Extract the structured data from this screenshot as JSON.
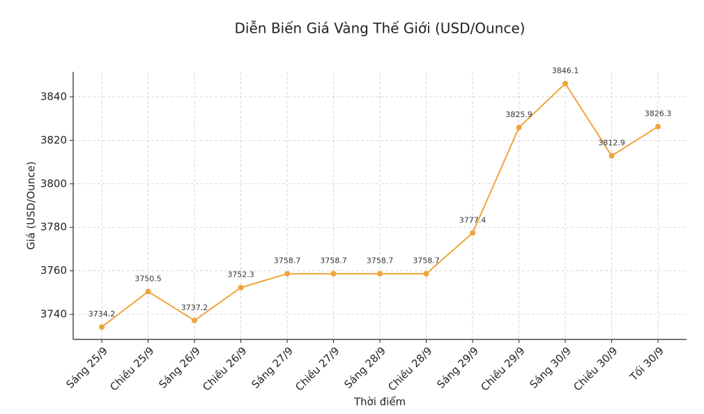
{
  "chart_data": {
    "type": "line",
    "title": "Diễn Biến Giá Vàng Thế Giới (USD/Ounce)",
    "x_label": "Thời điểm",
    "y_label": "Giá (USD/Ounce)",
    "categories": [
      "Sáng 25/9",
      "Chiều 25/9",
      "Sáng 26/9",
      "Chiều 26/9",
      "Sáng 27/9",
      "Chiều 27/9",
      "Sáng 28/9",
      "Chiều 28/9",
      "Sáng 29/9",
      "Chiều 29/9",
      "Sáng 30/9",
      "Chiều 30/9",
      "Tối 30/9"
    ],
    "series": [
      {
        "name": "Giá",
        "color": "#f0a33a",
        "values": [
          3734.2,
          3750.5,
          3737.2,
          3752.3,
          3758.7,
          3758.7,
          3758.7,
          3758.7,
          3777.4,
          3825.9,
          3846.1,
          3812.9,
          3826.3
        ]
      }
    ],
    "ylim": [
      3728.5,
      3851.5
    ],
    "yticks": [
      3740,
      3760,
      3780,
      3800,
      3820,
      3840
    ],
    "grid": true
  }
}
